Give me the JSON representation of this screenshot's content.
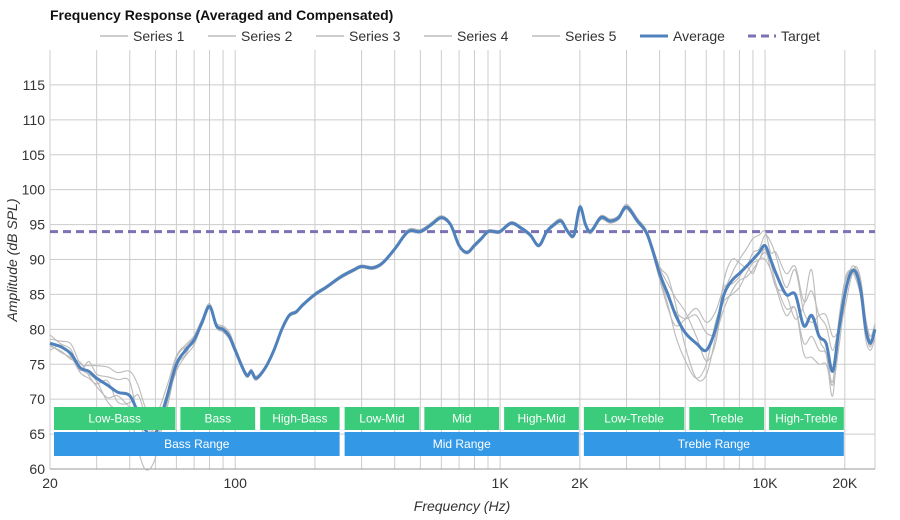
{
  "chart_data": {
    "type": "line",
    "title": "Frequency Response (Averaged and Compensated)",
    "xlabel": "Frequency (Hz)",
    "ylabel": "Amplitude (dB SPL)",
    "x_scale": "log",
    "xlim": [
      20,
      26000
    ],
    "ylim": [
      60,
      120
    ],
    "x_ticks": [
      {
        "value": 20,
        "label": "20"
      },
      {
        "value": 100,
        "label": "100"
      },
      {
        "value": 1000,
        "label": "1K"
      },
      {
        "value": 2000,
        "label": "2K"
      },
      {
        "value": 10000,
        "label": "10K"
      },
      {
        "value": 20000,
        "label": "20K"
      }
    ],
    "y_ticks": [
      60,
      65,
      70,
      75,
      80,
      85,
      90,
      95,
      100,
      105,
      110,
      115
    ],
    "grid": true,
    "legend_position": "top",
    "legend": [
      {
        "name": "Series 1",
        "style": "thin",
        "color": "#bbbbbb"
      },
      {
        "name": "Series 2",
        "style": "thin",
        "color": "#bbbbbb"
      },
      {
        "name": "Series 3",
        "style": "thin",
        "color": "#bbbbbb"
      },
      {
        "name": "Series 4",
        "style": "thin",
        "color": "#bbbbbb"
      },
      {
        "name": "Series 5",
        "style": "thin",
        "color": "#bbbbbb"
      },
      {
        "name": "Average",
        "style": "thick",
        "color": "#4f81bd"
      },
      {
        "name": "Target",
        "style": "dashed",
        "color": "#7b72b5"
      }
    ],
    "target": {
      "name": "Target",
      "value": 94
    },
    "average": {
      "name": "Average",
      "x": [
        20,
        22,
        24,
        26,
        28,
        30,
        33,
        36,
        40,
        43,
        46,
        50,
        55,
        60,
        65,
        70,
        75,
        80,
        85,
        90,
        95,
        100,
        110,
        115,
        120,
        130,
        140,
        150,
        160,
        170,
        180,
        200,
        220,
        250,
        280,
        300,
        330,
        360,
        400,
        450,
        500,
        550,
        600,
        650,
        700,
        750,
        800,
        850,
        900,
        950,
        1000,
        1100,
        1200,
        1300,
        1400,
        1500,
        1600,
        1700,
        1800,
        1900,
        2000,
        2100,
        2200,
        2400,
        2600,
        2800,
        3000,
        3300,
        3600,
        4000,
        4300,
        4600,
        5000,
        5500,
        6000,
        6500,
        7000,
        7500,
        8000,
        8500,
        9000,
        9500,
        10000,
        10500,
        11000,
        12000,
        13000,
        14000,
        15000,
        16000,
        17000,
        18000,
        19000,
        20000,
        21000,
        22000,
        23000,
        24000,
        25000,
        26000
      ],
      "y": [
        78,
        77.5,
        76.5,
        74.5,
        74,
        73,
        72,
        71,
        70.5,
        68,
        65.5,
        65,
        70,
        75,
        77,
        78.5,
        81,
        83.3,
        80.5,
        80,
        79,
        77,
        73.5,
        74,
        73,
        74.5,
        77,
        80,
        82,
        82.5,
        83.5,
        85,
        86,
        87.5,
        88.5,
        89,
        88.8,
        89.5,
        91.5,
        94,
        94,
        95,
        96,
        95,
        92,
        91,
        92,
        93,
        94,
        94,
        94,
        95.2,
        94.5,
        93.5,
        92,
        94,
        95,
        95.5,
        94,
        93.5,
        97.5,
        95,
        94,
        96,
        95.5,
        96,
        97.5,
        95.5,
        93.5,
        88,
        85,
        82,
        79.5,
        78,
        77,
        80,
        85,
        87,
        88,
        89,
        90,
        91,
        92,
        90,
        88,
        85,
        85,
        80.5,
        82,
        79,
        78,
        74,
        80,
        85,
        88,
        88.2,
        85.5,
        80,
        78,
        80
      ]
    },
    "series": [
      {
        "name": "Series 1",
        "offsets": [
          0.6,
          0.8,
          1.4,
          0.6,
          0.8,
          1.8,
          2.6,
          2.8,
          3.5,
          4,
          3.2,
          2.6,
          1.6,
          1.2,
          0.8,
          0.6,
          0.5,
          0.4,
          0.4,
          0.5,
          0.6,
          0.5,
          0.3,
          0.3,
          0.3,
          0.3,
          0.3,
          0.3,
          0.2,
          0.2,
          0.2,
          0.2,
          0.2,
          0.2,
          0.2,
          0.2,
          0.2,
          0.2,
          0.2,
          0.3,
          0.3,
          0.3,
          0.3,
          0.2,
          0.2,
          0.2,
          0.3,
          0.2,
          0.2,
          0.2,
          0.2,
          0.2,
          0.2,
          0.2,
          0.2,
          0.2,
          0.3,
          0.3,
          0.3,
          0.3,
          0.3,
          0.3,
          0.3,
          0.3,
          0.3,
          0.3,
          0.4,
          0.4,
          0.4,
          0.8,
          1.5,
          2.5,
          3,
          1,
          -1.5,
          -2,
          0,
          1,
          2,
          2.5,
          3,
          2.5,
          2,
          1,
          3,
          3,
          4,
          3.5,
          3.5,
          3,
          2.5,
          3,
          0.5,
          -0.5,
          0,
          0.5,
          1,
          1,
          0.5,
          0.5
        ]
      },
      {
        "name": "Series 2",
        "offsets": [
          -0.4,
          -0.6,
          -0.8,
          0.8,
          -0.6,
          -1.2,
          -1.8,
          -0.5,
          -1.6,
          0.8,
          1.4,
          -0.6,
          -1.6,
          -0.4,
          -0.6,
          0.4,
          -0.4,
          -0.3,
          -0.3,
          -0.4,
          -0.4,
          -0.3,
          -0.3,
          -0.2,
          -0.3,
          -0.2,
          -0.2,
          -0.2,
          -0.2,
          -0.2,
          -0.2,
          -0.2,
          -0.2,
          -0.2,
          -0.2,
          -0.2,
          -0.2,
          -0.2,
          -0.2,
          -0.2,
          -0.2,
          -0.2,
          -0.2,
          -0.2,
          -0.2,
          -0.2,
          -0.2,
          -0.2,
          -0.2,
          -0.2,
          -0.2,
          -0.2,
          -0.2,
          -0.2,
          -0.2,
          -0.2,
          -0.2,
          -0.2,
          -0.2,
          -0.2,
          -0.3,
          -0.3,
          -0.3,
          -0.3,
          -0.3,
          -0.3,
          -0.3,
          -0.3,
          -0.3,
          -0.6,
          -1.5,
          -3,
          -4,
          -5,
          -2,
          1,
          -1,
          -2,
          -2,
          -1,
          -0.5,
          -1,
          -0.5,
          -1.5,
          -2,
          -3,
          -2,
          -4,
          -6,
          -4,
          -3,
          -2,
          -2.5,
          -1,
          0.5,
          0.5,
          -0.5,
          -0.5,
          -0.5,
          0.2
        ]
      },
      {
        "name": "Series 3",
        "offsets": [
          1.2,
          0.4,
          0.6,
          -0.4,
          1.4,
          0.6,
          1.2,
          1.8,
          2,
          -1,
          -0.5,
          1.2,
          0.6,
          0.9,
          0.5,
          -0.4,
          0.3,
          0.2,
          0.2,
          0.3,
          0.3,
          0.3,
          0.2,
          0.2,
          0.2,
          0.2,
          0.2,
          0.2,
          0.2,
          0.2,
          0.2,
          0.2,
          0.2,
          0.2,
          0.2,
          0.2,
          0.2,
          0.2,
          0.2,
          0.2,
          0.2,
          0.2,
          0.2,
          0.2,
          0.2,
          0.2,
          0.2,
          0.2,
          0.2,
          0.2,
          0.2,
          0.2,
          0.2,
          0.2,
          0.2,
          0.2,
          0.2,
          0.2,
          0.2,
          0.2,
          0.2,
          0.2,
          0.2,
          0.2,
          0.2,
          0.2,
          0.2,
          0.2,
          0.2,
          1,
          2.5,
          1.5,
          -2,
          -5,
          -3.5,
          -1,
          2,
          3,
          1.5,
          0,
          1,
          0.5,
          1.5,
          2.5,
          2.5,
          1,
          3.5,
          2,
          -1,
          3,
          4,
          5,
          0,
          -2,
          -1,
          0.8,
          1.5,
          1.5,
          1,
          0.8
        ]
      },
      {
        "name": "Series 4",
        "offsets": [
          -1,
          0.2,
          -0.4,
          -0.7,
          -1,
          -0.8,
          0.6,
          -1.4,
          -1,
          2.6,
          2,
          0.4,
          0.5,
          -0.6,
          0.4,
          0.3,
          -0.3,
          -0.2,
          -0.2,
          -0.2,
          -0.2,
          -0.2,
          -0.2,
          -0.2,
          -0.2,
          -0.2,
          -0.2,
          -0.2,
          -0.2,
          -0.2,
          -0.2,
          -0.2,
          -0.2,
          -0.2,
          -0.2,
          -0.2,
          -0.2,
          -0.2,
          -0.2,
          -0.2,
          -0.2,
          -0.2,
          -0.2,
          -0.2,
          -0.2,
          -0.2,
          -0.2,
          -0.2,
          -0.2,
          -0.2,
          -0.2,
          -0.2,
          -0.2,
          -0.2,
          -0.2,
          -0.2,
          -0.2,
          -0.2,
          -0.2,
          -0.2,
          -0.2,
          -0.2,
          -0.2,
          -0.2,
          -0.2,
          -0.2,
          -0.2,
          -0.2,
          -0.2,
          -0.3,
          -0.5,
          0.5,
          2,
          4,
          2.5,
          -0.5,
          -2,
          -1.5,
          -1,
          -1.5,
          -1.5,
          -1,
          -1,
          -0.5,
          -1.5,
          -2,
          -2,
          -2.5,
          -3,
          -2,
          -1.5,
          -1.5,
          1.5,
          1.5,
          0.5,
          -0.5,
          -0.5,
          -0.5,
          -0.2,
          -0.2
        ]
      },
      {
        "name": "Series 5",
        "offsets": [
          -0.2,
          -0.8,
          -0.6,
          -0.2,
          -0.4,
          -0.4,
          -2.4,
          -2.6,
          -2.6,
          -5.2,
          -5.6,
          -3.4,
          -0.9,
          -1,
          -0.8,
          -0.7,
          -0.2,
          -0.1,
          -0.1,
          -0.2,
          -0.3,
          -0.3,
          0,
          -0.1,
          0,
          -0.1,
          -0.1,
          -0.1,
          0,
          0,
          0,
          0,
          0,
          0,
          0,
          0,
          0,
          0,
          0,
          -0.1,
          -0.1,
          -0.1,
          -0.1,
          0,
          0,
          0,
          -0.1,
          0,
          0,
          0,
          0,
          0,
          0,
          0,
          0,
          0,
          -0.1,
          -0.1,
          -0.1,
          -0.1,
          0,
          0,
          0,
          0,
          0,
          0,
          -0.1,
          -0.1,
          -0.1,
          -0.9,
          -2,
          -1.5,
          2,
          5,
          4,
          2.5,
          1,
          -0.5,
          -0.5,
          0,
          -2,
          -1,
          -2,
          -1.5,
          -2,
          0,
          -3.5,
          3,
          6.5,
          0,
          -1.5,
          -3.5,
          1,
          2,
          0.5,
          -1,
          -1,
          -1.5,
          -1,
          -1.3
        ]
      }
    ],
    "bands": [
      {
        "label": "Low-Bass",
        "from": 20,
        "to": 60,
        "row": 1
      },
      {
        "label": "Bass",
        "from": 60,
        "to": 120,
        "row": 1
      },
      {
        "label": "High-Bass",
        "from": 120,
        "to": 250,
        "row": 1
      },
      {
        "label": "Low-Mid",
        "from": 250,
        "to": 500,
        "row": 1
      },
      {
        "label": "Mid",
        "from": 500,
        "to": 1000,
        "row": 1
      },
      {
        "label": "High-Mid",
        "from": 1000,
        "to": 2000,
        "row": 1
      },
      {
        "label": "Low-Treble",
        "from": 2000,
        "to": 5000,
        "row": 1
      },
      {
        "label": "Treble",
        "from": 5000,
        "to": 10000,
        "row": 1
      },
      {
        "label": "High-Treble",
        "from": 10000,
        "to": 20000,
        "row": 1
      },
      {
        "label": "Bass Range",
        "from": 20,
        "to": 250,
        "row": 2
      },
      {
        "label": "Mid Range",
        "from": 250,
        "to": 2000,
        "row": 2
      },
      {
        "label": "Treble Range",
        "from": 2000,
        "to": 20000,
        "row": 2
      }
    ],
    "colors": {
      "average": "#4f81bd",
      "series": "#bbbbbb",
      "target": "#7b72b5",
      "band_row1": "#3acc7a",
      "band_row2": "#3398e6",
      "grid": "#cccccc"
    }
  }
}
